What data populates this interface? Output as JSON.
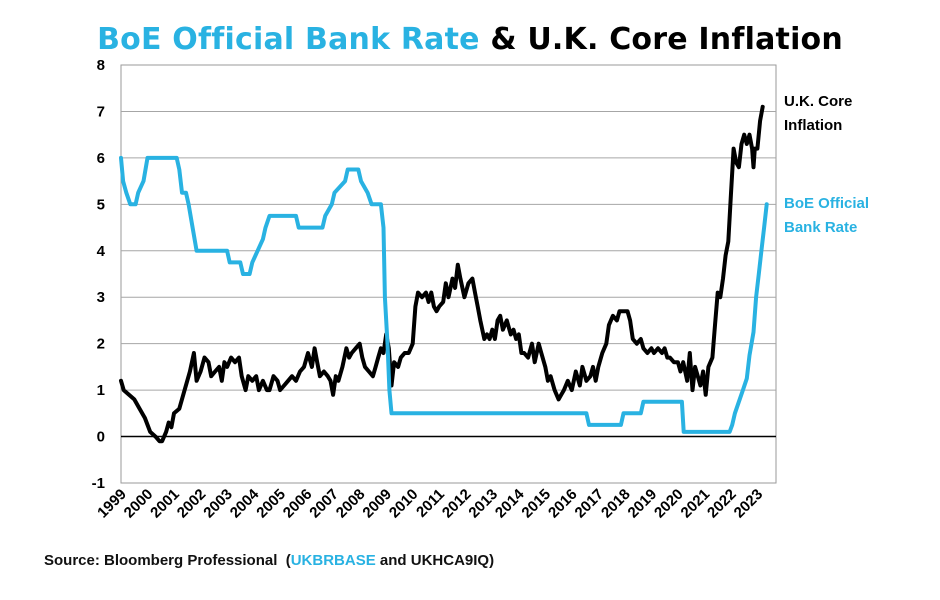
{
  "title": {
    "part1": "BoE Official Bank Rate",
    "part2": " & U.K. Core Inflation"
  },
  "source": {
    "prefix": "Source: Bloomberg Professional  (",
    "code1": "UKBRBASE",
    "suffix": " and UKHCA9IQ)"
  },
  "colors": {
    "bank_rate": "#29b2e2",
    "inflation": "#000000"
  },
  "chart_data": {
    "type": "line",
    "title": "BoE Official Bank Rate & U.K. Core Inflation",
    "xlabel": "",
    "ylabel": "",
    "x_ticks": [
      "1999",
      "2000",
      "2001",
      "2002",
      "2003",
      "2004",
      "2005",
      "2006",
      "2007",
      "2008",
      "2009",
      "2010",
      "2011",
      "2012",
      "2013",
      "2014",
      "2015",
      "2016",
      "2017",
      "2018",
      "2019",
      "2020",
      "2021",
      "2022",
      "2023"
    ],
    "xlim": [
      1999,
      2023.7
    ],
    "ylim": [
      -1,
      8
    ],
    "y_ticks": [
      -1,
      0,
      1,
      2,
      3,
      4,
      5,
      6,
      7,
      8
    ],
    "grid": "horizontal",
    "zero_line": true,
    "series": [
      {
        "name": "U.K. Core Inflation",
        "label_lines": [
          "U.K. Core",
          "Inflation"
        ],
        "color": "#000000",
        "points": [
          [
            1999.0,
            1.2
          ],
          [
            1999.1,
            1.0
          ],
          [
            1999.3,
            0.9
          ],
          [
            1999.5,
            0.8
          ],
          [
            1999.7,
            0.6
          ],
          [
            1999.9,
            0.4
          ],
          [
            2000.1,
            0.1
          ],
          [
            2000.3,
            0.0
          ],
          [
            2000.45,
            -0.1
          ],
          [
            2000.55,
            -0.1
          ],
          [
            2000.7,
            0.1
          ],
          [
            2000.8,
            0.3
          ],
          [
            2000.9,
            0.2
          ],
          [
            2001.0,
            0.5
          ],
          [
            2001.2,
            0.6
          ],
          [
            2001.4,
            1.0
          ],
          [
            2001.6,
            1.4
          ],
          [
            2001.75,
            1.8
          ],
          [
            2001.85,
            1.2
          ],
          [
            2002.0,
            1.4
          ],
          [
            2002.15,
            1.7
          ],
          [
            2002.3,
            1.6
          ],
          [
            2002.4,
            1.3
          ],
          [
            2002.55,
            1.4
          ],
          [
            2002.7,
            1.5
          ],
          [
            2002.8,
            1.2
          ],
          [
            2002.9,
            1.6
          ],
          [
            2003.0,
            1.5
          ],
          [
            2003.15,
            1.7
          ],
          [
            2003.3,
            1.6
          ],
          [
            2003.45,
            1.7
          ],
          [
            2003.55,
            1.3
          ],
          [
            2003.7,
            1.0
          ],
          [
            2003.8,
            1.3
          ],
          [
            2003.95,
            1.2
          ],
          [
            2004.1,
            1.3
          ],
          [
            2004.2,
            1.0
          ],
          [
            2004.35,
            1.2
          ],
          [
            2004.5,
            1.0
          ],
          [
            2004.6,
            1.0
          ],
          [
            2004.75,
            1.3
          ],
          [
            2004.9,
            1.2
          ],
          [
            2005.0,
            1.0
          ],
          [
            2005.15,
            1.1
          ],
          [
            2005.3,
            1.2
          ],
          [
            2005.45,
            1.3
          ],
          [
            2005.6,
            1.2
          ],
          [
            2005.75,
            1.4
          ],
          [
            2005.9,
            1.5
          ],
          [
            2006.05,
            1.8
          ],
          [
            2006.2,
            1.5
          ],
          [
            2006.3,
            1.9
          ],
          [
            2006.4,
            1.6
          ],
          [
            2006.5,
            1.3
          ],
          [
            2006.65,
            1.4
          ],
          [
            2006.8,
            1.3
          ],
          [
            2006.9,
            1.2
          ],
          [
            2007.0,
            0.9
          ],
          [
            2007.1,
            1.3
          ],
          [
            2007.2,
            1.2
          ],
          [
            2007.35,
            1.5
          ],
          [
            2007.5,
            1.9
          ],
          [
            2007.6,
            1.7
          ],
          [
            2007.7,
            1.8
          ],
          [
            2007.85,
            1.9
          ],
          [
            2008.0,
            2.0
          ],
          [
            2008.1,
            1.7
          ],
          [
            2008.2,
            1.5
          ],
          [
            2008.35,
            1.4
          ],
          [
            2008.5,
            1.3
          ],
          [
            2008.6,
            1.5
          ],
          [
            2008.7,
            1.7
          ],
          [
            2008.8,
            1.9
          ],
          [
            2008.9,
            1.8
          ],
          [
            2009.0,
            2.2
          ],
          [
            2009.1,
            1.9
          ],
          [
            2009.2,
            1.1
          ],
          [
            2009.3,
            1.6
          ],
          [
            2009.45,
            1.5
          ],
          [
            2009.55,
            1.7
          ],
          [
            2009.7,
            1.8
          ],
          [
            2009.85,
            1.8
          ],
          [
            2010.0,
            2.0
          ],
          [
            2010.1,
            2.8
          ],
          [
            2010.2,
            3.1
          ],
          [
            2010.35,
            3.0
          ],
          [
            2010.5,
            3.1
          ],
          [
            2010.6,
            2.9
          ],
          [
            2010.7,
            3.1
          ],
          [
            2010.8,
            2.8
          ],
          [
            2010.9,
            2.7
          ],
          [
            2011.0,
            2.8
          ],
          [
            2011.15,
            2.9
          ],
          [
            2011.25,
            3.3
          ],
          [
            2011.35,
            3.0
          ],
          [
            2011.5,
            3.4
          ],
          [
            2011.6,
            3.2
          ],
          [
            2011.7,
            3.7
          ],
          [
            2011.8,
            3.4
          ],
          [
            2011.95,
            3.0
          ],
          [
            2012.1,
            3.3
          ],
          [
            2012.25,
            3.4
          ],
          [
            2012.35,
            3.1
          ],
          [
            2012.45,
            2.8
          ],
          [
            2012.55,
            2.5
          ],
          [
            2012.7,
            2.1
          ],
          [
            2012.8,
            2.2
          ],
          [
            2012.9,
            2.1
          ],
          [
            2013.0,
            2.3
          ],
          [
            2013.1,
            2.1
          ],
          [
            2013.2,
            2.5
          ],
          [
            2013.3,
            2.6
          ],
          [
            2013.4,
            2.3
          ],
          [
            2013.55,
            2.5
          ],
          [
            2013.7,
            2.2
          ],
          [
            2013.8,
            2.3
          ],
          [
            2013.9,
            2.1
          ],
          [
            2014.0,
            2.2
          ],
          [
            2014.1,
            1.8
          ],
          [
            2014.2,
            1.8
          ],
          [
            2014.35,
            1.7
          ],
          [
            2014.5,
            2.0
          ],
          [
            2014.6,
            1.6
          ],
          [
            2014.75,
            2.0
          ],
          [
            2014.85,
            1.8
          ],
          [
            2015.0,
            1.5
          ],
          [
            2015.1,
            1.2
          ],
          [
            2015.2,
            1.3
          ],
          [
            2015.35,
            1.0
          ],
          [
            2015.5,
            0.8
          ],
          [
            2015.6,
            0.9
          ],
          [
            2015.7,
            1.0
          ],
          [
            2015.85,
            1.2
          ],
          [
            2016.0,
            1.0
          ],
          [
            2016.15,
            1.4
          ],
          [
            2016.3,
            1.1
          ],
          [
            2016.4,
            1.5
          ],
          [
            2016.55,
            1.2
          ],
          [
            2016.7,
            1.3
          ],
          [
            2016.8,
            1.5
          ],
          [
            2016.9,
            1.2
          ],
          [
            2017.0,
            1.5
          ],
          [
            2017.15,
            1.8
          ],
          [
            2017.3,
            2.0
          ],
          [
            2017.4,
            2.4
          ],
          [
            2017.55,
            2.6
          ],
          [
            2017.7,
            2.5
          ],
          [
            2017.8,
            2.7
          ],
          [
            2017.95,
            2.7
          ],
          [
            2018.1,
            2.7
          ],
          [
            2018.2,
            2.5
          ],
          [
            2018.3,
            2.1
          ],
          [
            2018.45,
            2.0
          ],
          [
            2018.6,
            2.1
          ],
          [
            2018.7,
            1.9
          ],
          [
            2018.85,
            1.8
          ],
          [
            2019.0,
            1.9
          ],
          [
            2019.1,
            1.8
          ],
          [
            2019.25,
            1.9
          ],
          [
            2019.4,
            1.8
          ],
          [
            2019.5,
            1.9
          ],
          [
            2019.6,
            1.7
          ],
          [
            2019.7,
            1.7
          ],
          [
            2019.85,
            1.6
          ],
          [
            2020.0,
            1.6
          ],
          [
            2020.1,
            1.4
          ],
          [
            2020.2,
            1.6
          ],
          [
            2020.35,
            1.2
          ],
          [
            2020.45,
            1.8
          ],
          [
            2020.55,
            1.0
          ],
          [
            2020.65,
            1.5
          ],
          [
            2020.75,
            1.3
          ],
          [
            2020.85,
            1.1
          ],
          [
            2020.95,
            1.4
          ],
          [
            2021.05,
            0.9
          ],
          [
            2021.15,
            1.5
          ],
          [
            2021.3,
            1.7
          ],
          [
            2021.4,
            2.4
          ],
          [
            2021.5,
            3.1
          ],
          [
            2021.6,
            3.0
          ],
          [
            2021.7,
            3.4
          ],
          [
            2021.8,
            3.9
          ],
          [
            2021.9,
            4.2
          ],
          [
            2022.0,
            5.2
          ],
          [
            2022.1,
            6.2
          ],
          [
            2022.2,
            5.9
          ],
          [
            2022.3,
            5.8
          ],
          [
            2022.4,
            6.3
          ],
          [
            2022.5,
            6.5
          ],
          [
            2022.6,
            6.3
          ],
          [
            2022.7,
            6.5
          ],
          [
            2022.8,
            6.2
          ],
          [
            2022.85,
            5.8
          ],
          [
            2022.9,
            6.2
          ],
          [
            2023.0,
            6.2
          ],
          [
            2023.1,
            6.8
          ],
          [
            2023.2,
            7.1
          ]
        ]
      },
      {
        "name": "BoE Official Bank Rate",
        "label_lines": [
          "BoE Official",
          "Bank Rate"
        ],
        "color": "#29b2e2",
        "points": [
          [
            1999.0,
            6.0
          ],
          [
            1999.08,
            5.5
          ],
          [
            1999.2,
            5.25
          ],
          [
            1999.35,
            5.0
          ],
          [
            1999.55,
            5.0
          ],
          [
            1999.65,
            5.25
          ],
          [
            1999.85,
            5.5
          ],
          [
            2000.0,
            6.0
          ],
          [
            2001.1,
            6.0
          ],
          [
            2001.2,
            5.75
          ],
          [
            2001.3,
            5.25
          ],
          [
            2001.45,
            5.25
          ],
          [
            2001.55,
            5.0
          ],
          [
            2001.7,
            4.5
          ],
          [
            2001.85,
            4.0
          ],
          [
            2003.0,
            4.0
          ],
          [
            2003.1,
            3.75
          ],
          [
            2003.5,
            3.75
          ],
          [
            2003.6,
            3.5
          ],
          [
            2003.85,
            3.5
          ],
          [
            2003.95,
            3.75
          ],
          [
            2004.15,
            4.0
          ],
          [
            2004.35,
            4.25
          ],
          [
            2004.45,
            4.5
          ],
          [
            2004.6,
            4.75
          ],
          [
            2005.6,
            4.75
          ],
          [
            2005.7,
            4.5
          ],
          [
            2006.6,
            4.5
          ],
          [
            2006.7,
            4.75
          ],
          [
            2006.95,
            5.0
          ],
          [
            2007.05,
            5.25
          ],
          [
            2007.45,
            5.5
          ],
          [
            2007.55,
            5.75
          ],
          [
            2007.95,
            5.75
          ],
          [
            2008.05,
            5.5
          ],
          [
            2008.3,
            5.25
          ],
          [
            2008.45,
            5.0
          ],
          [
            2008.8,
            5.0
          ],
          [
            2008.9,
            4.5
          ],
          [
            2008.95,
            3.0
          ],
          [
            2009.05,
            2.0
          ],
          [
            2009.12,
            1.0
          ],
          [
            2009.2,
            0.5
          ],
          [
            2016.55,
            0.5
          ],
          [
            2016.65,
            0.25
          ],
          [
            2017.85,
            0.25
          ],
          [
            2017.95,
            0.5
          ],
          [
            2018.6,
            0.5
          ],
          [
            2018.7,
            0.75
          ],
          [
            2020.15,
            0.75
          ],
          [
            2020.22,
            0.1
          ],
          [
            2021.95,
            0.1
          ],
          [
            2022.05,
            0.25
          ],
          [
            2022.15,
            0.5
          ],
          [
            2022.3,
            0.75
          ],
          [
            2022.45,
            1.0
          ],
          [
            2022.6,
            1.25
          ],
          [
            2022.7,
            1.75
          ],
          [
            2022.85,
            2.25
          ],
          [
            2022.95,
            3.0
          ],
          [
            2023.05,
            3.5
          ],
          [
            2023.15,
            4.0
          ],
          [
            2023.25,
            4.5
          ],
          [
            2023.35,
            5.0
          ]
        ]
      }
    ]
  }
}
